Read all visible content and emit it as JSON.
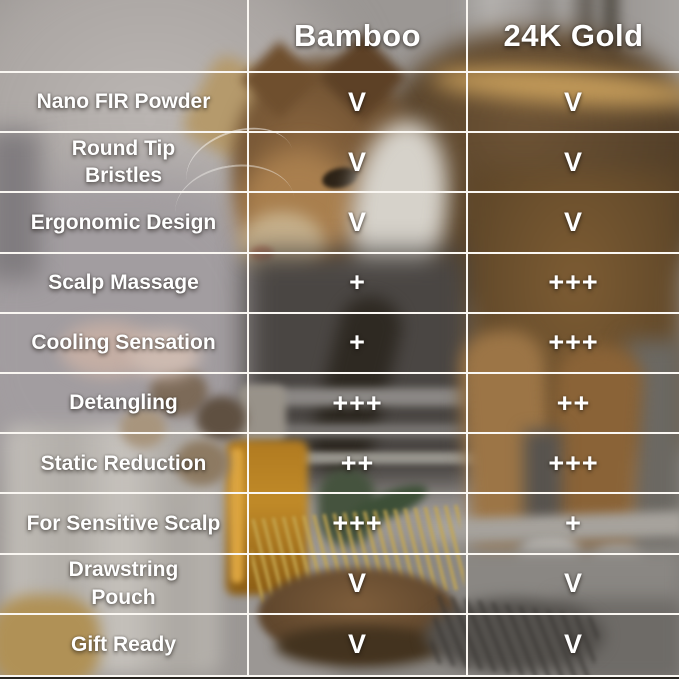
{
  "chart_data": {
    "type": "table",
    "columns": [
      "Bamboo",
      "24K Gold"
    ],
    "rows": [
      {
        "feature": "Nano FIR Powder",
        "values": [
          "V",
          "V"
        ]
      },
      {
        "feature": "Round Tip\nBristles",
        "values": [
          "V",
          "V"
        ]
      },
      {
        "feature": "Ergonomic Design",
        "values": [
          "V",
          "V"
        ]
      },
      {
        "feature": "Scalp Massage",
        "values": [
          "+",
          "+++"
        ]
      },
      {
        "feature": "Cooling Sensation",
        "values": [
          "+",
          "+++"
        ]
      },
      {
        "feature": "Detangling",
        "values": [
          "+++",
          "++"
        ]
      },
      {
        "feature": "Static Reduction",
        "values": [
          "++",
          "+++"
        ]
      },
      {
        "feature": "For Sensitive Scalp",
        "values": [
          "+++",
          "+"
        ]
      },
      {
        "feature": "Drawstring\nPouch",
        "values": [
          "V",
          "V"
        ]
      },
      {
        "feature": "Gift Ready",
        "values": [
          "V",
          "V"
        ]
      }
    ],
    "legend_position": "top",
    "grid": true
  },
  "style": {
    "grid_line_color": "#faf7f2",
    "text_color": "#ffffff",
    "check_symbol": "V"
  }
}
